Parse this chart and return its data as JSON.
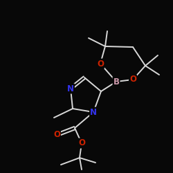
{
  "background_color": "#080808",
  "bond_color": "#d8d8d8",
  "nitrogen_color": "#3333ee",
  "oxygen_color": "#cc2200",
  "boron_color": "#cc99aa",
  "figsize": [
    2.5,
    2.5
  ],
  "dpi": 100,
  "xlim": [
    0,
    250
  ],
  "ylim": [
    0,
    250
  ]
}
